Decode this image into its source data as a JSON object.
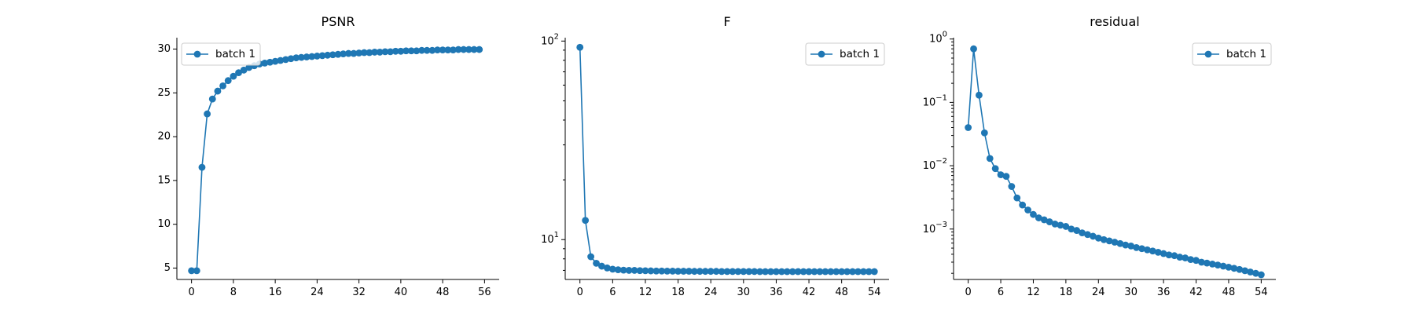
{
  "figure": {
    "background": "#ffffff",
    "series_color": "#1f77b4"
  },
  "chart_data": [
    {
      "type": "line",
      "title": "PSNR",
      "xlabel": "",
      "ylabel": "",
      "yscale": "linear",
      "xlim": [
        -2.8,
        58.8
      ],
      "ylim": [
        3.7,
        31.3
      ],
      "xticks": [
        0,
        8,
        16,
        24,
        32,
        40,
        48,
        56
      ],
      "yticks": [
        5,
        10,
        15,
        20,
        25,
        30
      ],
      "ytick_labels": [
        "5",
        "10",
        "15",
        "20",
        "25",
        "30"
      ],
      "grid": false,
      "legend_position": "upper-left",
      "series": [
        {
          "name": "batch 1",
          "marker": "circle",
          "x": [
            0,
            1,
            2,
            3,
            4,
            5,
            6,
            7,
            8,
            9,
            10,
            11,
            12,
            13,
            14,
            15,
            16,
            17,
            18,
            19,
            20,
            21,
            22,
            23,
            24,
            25,
            26,
            27,
            28,
            29,
            30,
            31,
            32,
            33,
            34,
            35,
            36,
            37,
            38,
            39,
            40,
            41,
            42,
            43,
            44,
            45,
            46,
            47,
            48,
            49,
            50,
            51,
            52,
            53,
            54,
            55
          ],
          "y": [
            4.7,
            4.7,
            16.5,
            22.6,
            24.3,
            25.2,
            25.8,
            26.4,
            26.9,
            27.3,
            27.6,
            27.9,
            28.1,
            28.3,
            28.4,
            28.5,
            28.6,
            28.7,
            28.8,
            28.9,
            29.0,
            29.05,
            29.1,
            29.15,
            29.2,
            29.25,
            29.3,
            29.35,
            29.4,
            29.45,
            29.5,
            29.5,
            29.55,
            29.6,
            29.6,
            29.65,
            29.65,
            29.7,
            29.7,
            29.75,
            29.75,
            29.8,
            29.8,
            29.8,
            29.85,
            29.85,
            29.85,
            29.9,
            29.9,
            29.9,
            29.9,
            29.95,
            29.95,
            29.95,
            29.95,
            29.95
          ]
        }
      ]
    },
    {
      "type": "line",
      "title": "F",
      "xlabel": "",
      "ylabel": "",
      "yscale": "log",
      "xlim": [
        -2.7,
        56.7
      ],
      "ylim": [
        6.3,
        104
      ],
      "xticks": [
        0,
        6,
        12,
        18,
        24,
        30,
        36,
        42,
        48,
        54
      ],
      "yticks": [
        10,
        100
      ],
      "ytick_labels": [
        "10^1",
        "10^2"
      ],
      "grid": false,
      "legend_position": "upper-right",
      "series": [
        {
          "name": "batch 1",
          "marker": "circle",
          "x": [
            0,
            1,
            2,
            3,
            4,
            5,
            6,
            7,
            8,
            9,
            10,
            11,
            12,
            13,
            14,
            15,
            16,
            17,
            18,
            19,
            20,
            21,
            22,
            23,
            24,
            25,
            26,
            27,
            28,
            29,
            30,
            31,
            32,
            33,
            34,
            35,
            36,
            37,
            38,
            39,
            40,
            41,
            42,
            43,
            44,
            45,
            46,
            47,
            48,
            49,
            50,
            51,
            52,
            53,
            54
          ],
          "y": [
            93,
            12.5,
            8.2,
            7.6,
            7.35,
            7.2,
            7.1,
            7.05,
            7.02,
            7.0,
            7.0,
            6.98,
            6.97,
            6.96,
            6.95,
            6.95,
            6.94,
            6.94,
            6.93,
            6.93,
            6.93,
            6.92,
            6.92,
            6.92,
            6.92,
            6.92,
            6.91,
            6.91,
            6.91,
            6.91,
            6.91,
            6.91,
            6.91,
            6.9,
            6.9,
            6.9,
            6.9,
            6.9,
            6.9,
            6.9,
            6.9,
            6.9,
            6.9,
            6.9,
            6.9,
            6.9,
            6.9,
            6.9,
            6.9,
            6.9,
            6.9,
            6.9,
            6.9,
            6.9,
            6.9
          ]
        }
      ]
    },
    {
      "type": "line",
      "title": "residual",
      "xlabel": "",
      "ylabel": "",
      "yscale": "log",
      "xlim": [
        -2.7,
        56.7
      ],
      "ylim": [
        0.00016,
        1.05
      ],
      "xticks": [
        0,
        6,
        12,
        18,
        24,
        30,
        36,
        42,
        48,
        54
      ],
      "yticks": [
        0.001,
        0.01,
        0.1,
        1
      ],
      "ytick_labels": [
        "10^-3",
        "10^-2",
        "10^-1",
        "10^0"
      ],
      "grid": false,
      "legend_position": "upper-right",
      "series": [
        {
          "name": "batch 1",
          "marker": "circle",
          "x": [
            0,
            1,
            2,
            3,
            4,
            5,
            6,
            7,
            8,
            9,
            10,
            11,
            12,
            13,
            14,
            15,
            16,
            17,
            18,
            19,
            20,
            21,
            22,
            23,
            24,
            25,
            26,
            27,
            28,
            29,
            30,
            31,
            32,
            33,
            34,
            35,
            36,
            37,
            38,
            39,
            40,
            41,
            42,
            43,
            44,
            45,
            46,
            47,
            48,
            49,
            50,
            51,
            52,
            53,
            54
          ],
          "y": [
            0.04,
            0.7,
            0.13,
            0.033,
            0.013,
            0.009,
            0.0072,
            0.0068,
            0.0047,
            0.0031,
            0.0024,
            0.002,
            0.0017,
            0.0015,
            0.0014,
            0.0013,
            0.0012,
            0.00115,
            0.0011,
            0.001,
            0.00095,
            0.00087,
            0.00082,
            0.00077,
            0.00072,
            0.00068,
            0.00065,
            0.00062,
            0.00059,
            0.00056,
            0.00054,
            0.00051,
            0.00049,
            0.00047,
            0.00045,
            0.00043,
            0.00041,
            0.00039,
            0.00038,
            0.00036,
            0.00035,
            0.00033,
            0.00032,
            0.0003,
            0.00029,
            0.00028,
            0.00027,
            0.00026,
            0.00025,
            0.00024,
            0.00023,
            0.00022,
            0.00021,
            0.0002,
            0.00019
          ]
        }
      ]
    }
  ]
}
